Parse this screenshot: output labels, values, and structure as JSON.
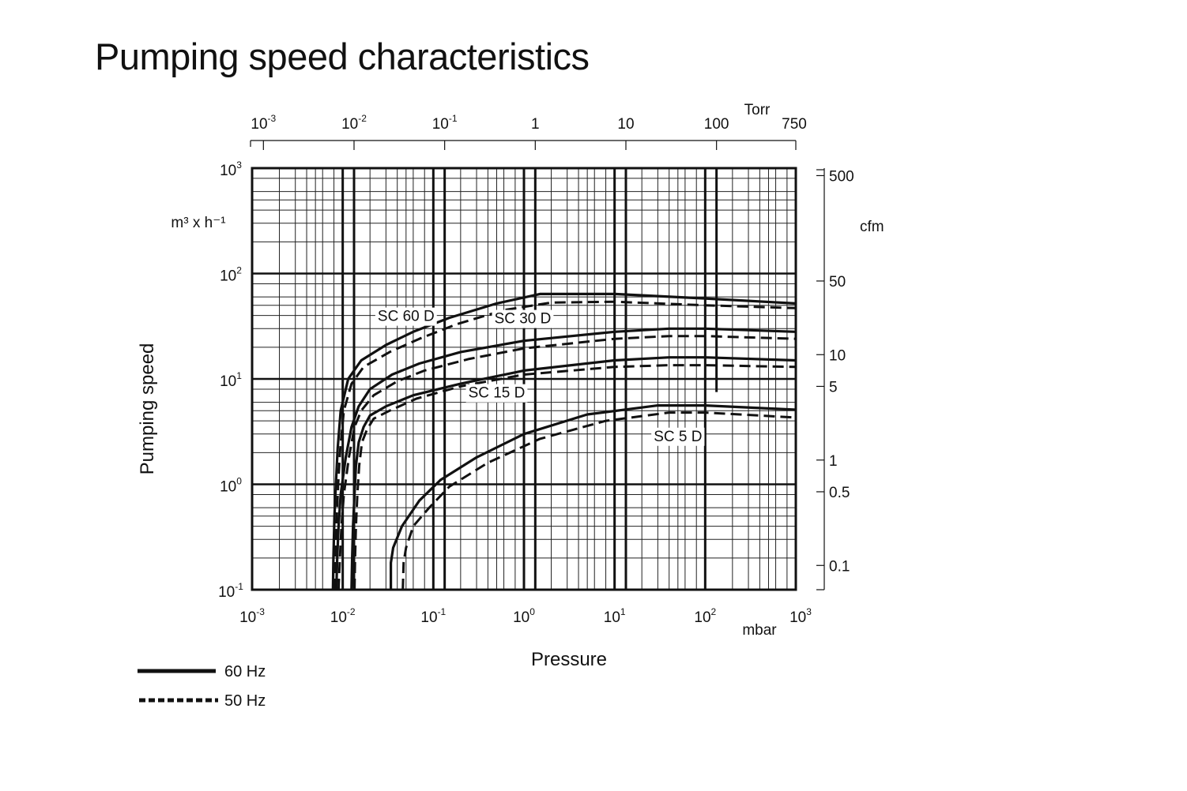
{
  "title": "Pumping speed characteristics",
  "chart_data": {
    "type": "line",
    "title": "Pumping speed characteristics",
    "xlabel": "Pressure",
    "ylabel": "Pumping speed",
    "x_unit": "mbar",
    "y_unit": "m³ x h⁻¹",
    "x_scale": "log",
    "y_scale": "log",
    "xlim": [
      0.001,
      1000
    ],
    "ylim": [
      0.1,
      1000
    ],
    "grid": true,
    "x_ticks": [
      {
        "base": "10",
        "exp": "-3",
        "value": 0.001
      },
      {
        "base": "10",
        "exp": "-2",
        "value": 0.01
      },
      {
        "base": "10",
        "exp": "-1",
        "value": 0.1
      },
      {
        "base": "10",
        "exp": "0",
        "value": 1
      },
      {
        "base": "10",
        "exp": "1",
        "value": 10
      },
      {
        "base": "10",
        "exp": "2",
        "value": 100
      },
      {
        "base": "10",
        "exp": "3",
        "value": 1000
      }
    ],
    "y_ticks": [
      {
        "base": "10",
        "exp": "3",
        "value": 1000
      },
      {
        "base": "10",
        "exp": "2",
        "value": 100
      },
      {
        "base": "10",
        "exp": "1",
        "value": 10
      },
      {
        "base": "10",
        "exp": "0",
        "value": 1
      },
      {
        "base": "10",
        "exp": "-1",
        "value": 0.1
      }
    ],
    "top_axis": {
      "unit": "Torr",
      "ticks": [
        {
          "label": "10",
          "exp": "-3",
          "value": 0.001
        },
        {
          "label": "10",
          "exp": "-2",
          "value": 0.01
        },
        {
          "label": "10",
          "exp": "-1",
          "value": 0.1
        },
        {
          "label": "1",
          "exp": "",
          "value": 1
        },
        {
          "label": "10",
          "exp": "",
          "value": 10
        },
        {
          "label": "100",
          "exp": "",
          "value": 100
        },
        {
          "label": "750",
          "exp": "",
          "value": 750
        }
      ]
    },
    "right_axis": {
      "unit": "cfm",
      "ticks": [
        {
          "label": "500",
          "value": 500
        },
        {
          "label": "50",
          "value": 50
        },
        {
          "label": "10",
          "value": 10
        },
        {
          "label": "5",
          "value": 5
        },
        {
          "label": "1",
          "value": 1
        },
        {
          "label": "0.5",
          "value": 0.5
        },
        {
          "label": "0.1",
          "value": 0.1
        }
      ]
    },
    "legend": [
      {
        "label": "60 Hz",
        "style": "solid"
      },
      {
        "label": "50 Hz",
        "style": "dashed"
      }
    ],
    "models": [
      {
        "name": "SC 60 D",
        "label_at": {
          "x": 0.05,
          "y": 40
        }
      },
      {
        "name": "SC 30 D",
        "label_at": {
          "x": 0.97,
          "y": 38
        }
      },
      {
        "name": "SC 15 D",
        "label_at": {
          "x": 0.5,
          "y": 7.5
        }
      },
      {
        "name": "SC 5 D",
        "label_at": {
          "x": 50,
          "y": 2.9
        }
      }
    ],
    "series": [
      {
        "name": "SC 60 D",
        "frequency": "60 Hz",
        "style": "solid",
        "x": [
          0.0078,
          0.0079,
          0.0081,
          0.0084,
          0.0088,
          0.0095,
          0.0115,
          0.016,
          0.03,
          0.06,
          0.15,
          0.5,
          1.5,
          10,
          100,
          1000
        ],
        "y": [
          0.1,
          0.2,
          0.5,
          1,
          2.2,
          5,
          10,
          15,
          21,
          28,
          38,
          52,
          64,
          64,
          58,
          52
        ]
      },
      {
        "name": "SC 60 D",
        "frequency": "50 Hz",
        "style": "dashed",
        "x": [
          0.0082,
          0.0083,
          0.0086,
          0.0089,
          0.0094,
          0.0103,
          0.0125,
          0.017,
          0.033,
          0.07,
          0.18,
          0.6,
          2,
          10,
          100,
          1000
        ],
        "y": [
          0.1,
          0.2,
          0.5,
          1,
          2.2,
          5,
          9,
          13,
          18,
          24,
          33,
          45,
          53,
          54,
          50,
          47
        ]
      },
      {
        "name": "SC 30 D",
        "frequency": "60 Hz",
        "style": "solid",
        "x": [
          0.0085,
          0.0087,
          0.009,
          0.0095,
          0.0108,
          0.0125,
          0.015,
          0.02,
          0.035,
          0.07,
          0.2,
          1,
          10,
          40,
          100,
          1000
        ],
        "y": [
          0.1,
          0.2,
          0.4,
          0.8,
          1.8,
          3.5,
          5.5,
          8,
          11,
          14,
          18,
          23,
          28,
          30,
          30,
          28
        ]
      },
      {
        "name": "SC 30 D",
        "frequency": "50 Hz",
        "style": "dashed",
        "x": [
          0.009,
          0.0093,
          0.0097,
          0.0103,
          0.0117,
          0.0135,
          0.016,
          0.022,
          0.04,
          0.08,
          0.25,
          1,
          10,
          40,
          100,
          1000
        ],
        "y": [
          0.1,
          0.2,
          0.4,
          0.8,
          1.8,
          3.5,
          5,
          7,
          9.5,
          12,
          15.5,
          19.5,
          24,
          25.5,
          25.5,
          24
        ]
      },
      {
        "name": "SC 15 D",
        "frequency": "60 Hz",
        "style": "solid",
        "x": [
          0.0125,
          0.0127,
          0.013,
          0.0135,
          0.014,
          0.015,
          0.017,
          0.02,
          0.03,
          0.06,
          0.2,
          1,
          10,
          40,
          100,
          1000
        ],
        "y": [
          0.1,
          0.2,
          0.4,
          0.8,
          1.5,
          2.5,
          3.5,
          4.5,
          5.5,
          7,
          9,
          12,
          15,
          16,
          16,
          15
        ]
      },
      {
        "name": "SC 15 D",
        "frequency": "50 Hz",
        "style": "dashed",
        "x": [
          0.0135,
          0.0137,
          0.014,
          0.0145,
          0.0152,
          0.0163,
          0.0185,
          0.022,
          0.033,
          0.065,
          0.2,
          1,
          10,
          40,
          100,
          1000
        ],
        "y": [
          0.1,
          0.2,
          0.4,
          0.8,
          1.5,
          2.5,
          3.3,
          4.2,
          5,
          6.5,
          8.5,
          11,
          13,
          13.5,
          13.5,
          13
        ]
      },
      {
        "name": "SC 5 D",
        "frequency": "60 Hz",
        "style": "solid",
        "x": [
          0.034,
          0.034,
          0.036,
          0.045,
          0.07,
          0.12,
          0.3,
          1,
          5,
          30,
          100,
          1000
        ],
        "y": [
          0.1,
          0.18,
          0.25,
          0.4,
          0.7,
          1.1,
          1.8,
          3,
          4.6,
          5.6,
          5.6,
          5.1
        ]
      },
      {
        "name": "SC 5 D",
        "frequency": "50 Hz",
        "style": "dashed",
        "x": [
          0.046,
          0.047,
          0.05,
          0.06,
          0.09,
          0.15,
          0.4,
          1.5,
          8,
          40,
          100,
          1000
        ],
        "y": [
          0.1,
          0.18,
          0.25,
          0.4,
          0.6,
          0.95,
          1.6,
          2.7,
          4.0,
          4.8,
          4.8,
          4.3
        ]
      }
    ]
  }
}
